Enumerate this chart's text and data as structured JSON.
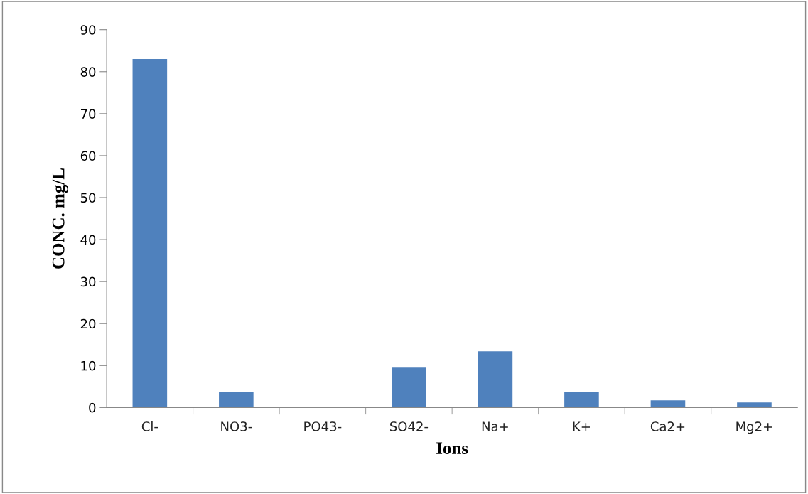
{
  "chart_data": {
    "type": "bar",
    "xlabel": "Ions",
    "ylabel": "CONC. mg/L",
    "categories": [
      "Cl-",
      "NO3-",
      "PO43-",
      "SO42-",
      "Na+",
      "K+",
      "Ca2+",
      "Mg2+"
    ],
    "values": [
      83,
      3.7,
      0,
      9.5,
      13.4,
      3.7,
      1.7,
      1.2
    ],
    "color": "#4f81bd",
    "ylim": [
      0,
      90
    ],
    "yticks": [
      0,
      10,
      20,
      30,
      40,
      50,
      60,
      70,
      80,
      90
    ],
    "grid": false,
    "legend": false
  }
}
